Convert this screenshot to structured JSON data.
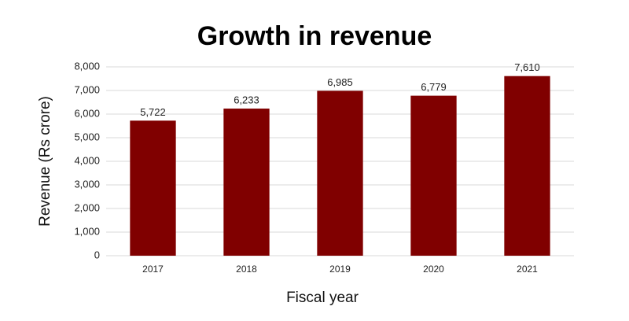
{
  "chart_data": {
    "type": "bar",
    "title": "Growth in revenue",
    "x_label": "Fiscal year",
    "y_label": "Revenue (Rs crore)",
    "categories": [
      "2017",
      "2018",
      "2019",
      "2020",
      "2021"
    ],
    "values": [
      5722,
      6233,
      6985,
      6779,
      7610
    ],
    "value_labels": [
      "5,722",
      "6,233",
      "6,985",
      "6,779",
      "7,610"
    ],
    "color": "#800000",
    "ylim": [
      0,
      8000
    ],
    "yticks": [
      0,
      {
        "value": 1000,
        "label": "1,000"
      },
      {
        "value": 2000,
        "label": "2,000"
      },
      {
        "value": 3000,
        "label": "3,000"
      },
      {
        "value": 4000,
        "label": "4,000"
      },
      {
        "value": 5000,
        "label": "5,000"
      },
      {
        "value": 6000,
        "label": "6,000"
      },
      {
        "value": 7000,
        "label": "7,000"
      },
      {
        "value": 8000,
        "label": "8,000"
      }
    ],
    "grid": true
  }
}
